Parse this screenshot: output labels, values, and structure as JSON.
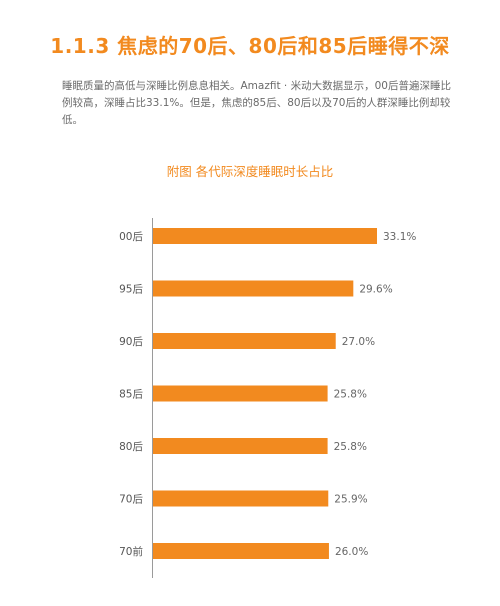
{
  "page": {
    "heading": "1.1.3 焦虑的70后、80后和85后睡得不深",
    "paragraph": "睡眠质量的高低与深睡比例息息相关。Amazfit · 米动大数据显示，00后普遍深睡比例较高，深睡占比33.1%。但是，焦虑的85后、80后以及70后的人群深睡比例却较低。"
  },
  "chart_data": {
    "type": "bar",
    "orientation": "horizontal",
    "title": "附图  各代际深度睡眠时长占比",
    "categories": [
      "00后",
      "95后",
      "90后",
      "85后",
      "80后",
      "70后",
      "70前"
    ],
    "values": [
      33.1,
      29.6,
      27.0,
      25.8,
      25.8,
      25.9,
      26.0
    ],
    "value_labels": [
      "33.1%",
      "29.6%",
      "27.0%",
      "25.8%",
      "25.8%",
      "25.9%",
      "26.0%"
    ],
    "bar_color": "#f28a1f",
    "xlim": [
      0,
      33.1
    ],
    "grid": false,
    "legend": "none"
  }
}
